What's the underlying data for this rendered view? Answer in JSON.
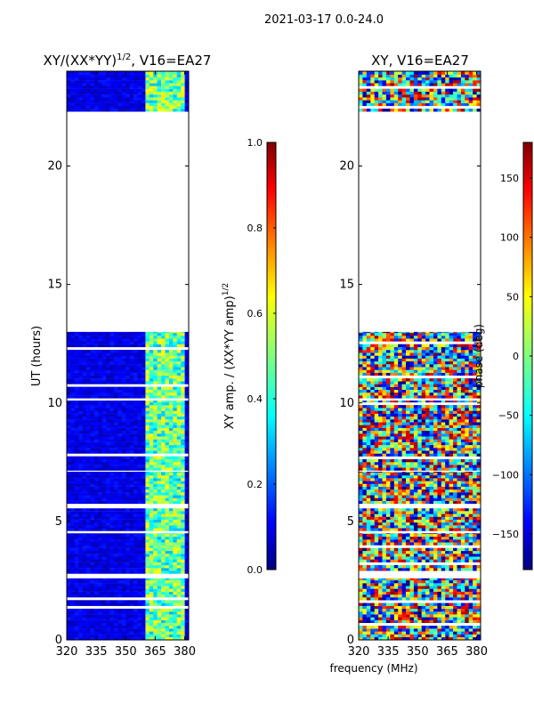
{
  "suptitle": "2021-03-17 0.0-24.0",
  "chart_data": [
    {
      "type": "heatmap",
      "title_main": "XY/(XX*YY)",
      "title_exp": "1/2",
      "title_tail": ", V16=EA27",
      "xlabel": "",
      "ylabel": "UT (hours)",
      "xlim": [
        320,
        382
      ],
      "ylim": [
        0,
        24
      ],
      "xticks": [
        320,
        335,
        350,
        365,
        380
      ],
      "yticks": [
        0,
        5,
        10,
        15,
        20
      ],
      "colorbar": {
        "label_main": "XY amp. / (XX*YY amp)",
        "label_exp": "1/2",
        "range": [
          0.0,
          1.0
        ],
        "ticks": [
          0.0,
          0.2,
          0.4,
          0.6,
          0.8,
          1.0
        ],
        "tick_labels": [
          "0.0",
          "0.2",
          "0.4",
          "0.6",
          "0.8",
          "1.0"
        ]
      },
      "data_hours": [
        [
          0.0,
          2.6
        ],
        [
          2.8,
          4.5
        ],
        [
          4.6,
          5.55
        ],
        [
          5.75,
          7.1
        ],
        [
          7.15,
          10.1
        ],
        [
          10.2,
          13.0
        ],
        [
          22.3,
          24.0
        ]
      ],
      "hot_band_MHz": [
        360,
        379
      ],
      "value_description": "mostly 0.05-0.15 (dark blue) outside band; 0.3-0.65 inside band"
    },
    {
      "type": "heatmap",
      "title_main": "XY, V16=EA27",
      "xlabel": "frequency (MHz)",
      "ylabel": "",
      "xlim": [
        320,
        382
      ],
      "ylim": [
        0,
        24
      ],
      "xticks": [
        320,
        335,
        350,
        365,
        380
      ],
      "yticks": [
        0,
        5,
        10,
        15,
        20
      ],
      "colorbar": {
        "label_main": "phase (deg)",
        "range": [
          -180,
          180
        ],
        "ticks": [
          -150,
          -100,
          -50,
          0,
          50,
          100,
          150
        ],
        "tick_labels": [
          "−150",
          "−100",
          "−50",
          "0",
          "50",
          "100",
          "150"
        ]
      },
      "data_hours": [
        [
          0.0,
          2.6
        ],
        [
          2.8,
          4.5
        ],
        [
          4.6,
          5.55
        ],
        [
          5.75,
          7.1
        ],
        [
          7.15,
          10.1
        ],
        [
          10.2,
          13.0
        ],
        [
          22.3,
          24.0
        ]
      ],
      "value_description": "phases span full range -180 to 180"
    }
  ],
  "palette": {
    "jet": [
      "#00007f",
      "#0000ff",
      "#007fff",
      "#00ffff",
      "#7fff7f",
      "#ffff00",
      "#ff7f00",
      "#ff0000",
      "#7f0000"
    ]
  }
}
